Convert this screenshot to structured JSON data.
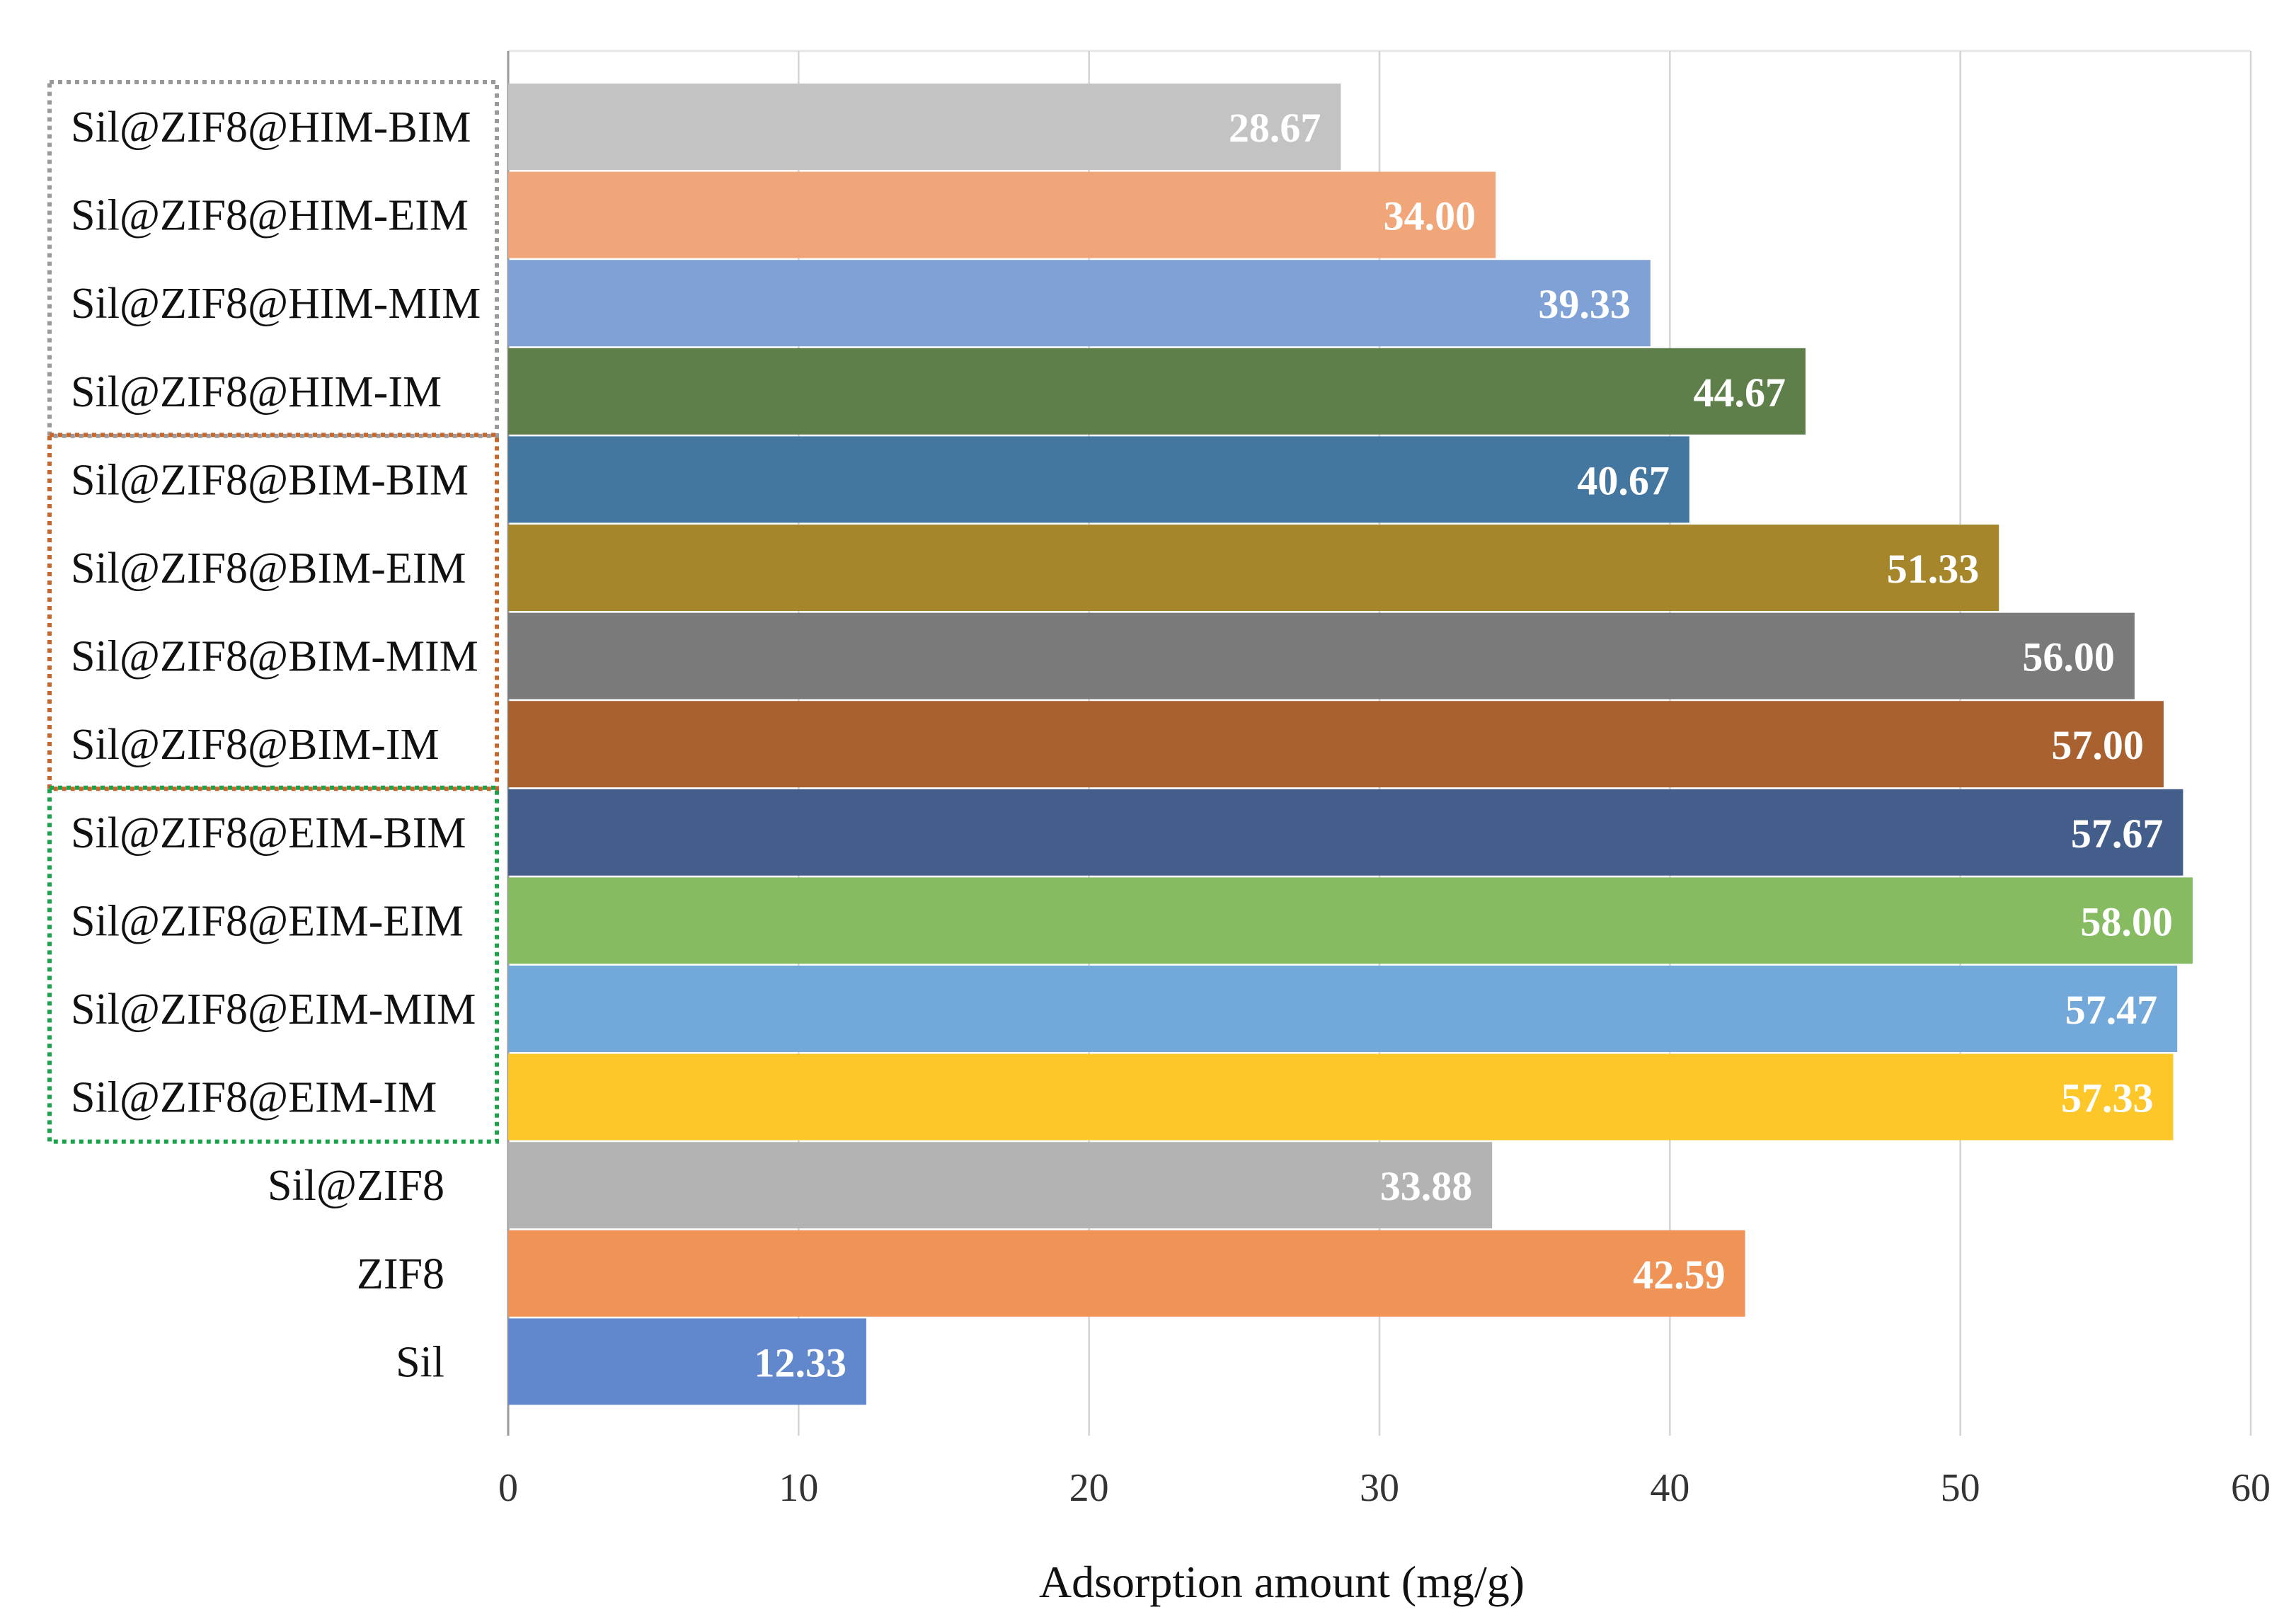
{
  "chart_data": {
    "type": "bar",
    "orientation": "horizontal",
    "title": "",
    "xlabel": "Adsorption amount (mg/g)",
    "ylabel": "",
    "xlim": [
      0,
      60
    ],
    "xticks": [
      0,
      10,
      20,
      30,
      40,
      50,
      60
    ],
    "grid": true,
    "categories": [
      "Sil@ZIF8@HIM-BIM",
      "Sil@ZIF8@HIM-EIM",
      "Sil@ZIF8@HIM-MIM",
      "Sil@ZIF8@HIM-IM",
      "Sil@ZIF8@BIM-BIM",
      "Sil@ZIF8@BIM-EIM",
      "Sil@ZIF8@BIM-MIM",
      "Sil@ZIF8@BIM-IM",
      "Sil@ZIF8@EIM-BIM",
      "Sil@ZIF8@EIM-EIM",
      "Sil@ZIF8@EIM-MIM",
      "Sil@ZIF8@EIM-IM",
      "Sil@ZIF8",
      "ZIF8",
      "Sil"
    ],
    "values": [
      28.67,
      34.0,
      39.33,
      44.67,
      40.67,
      51.33,
      56.0,
      57.0,
      57.67,
      58.0,
      57.47,
      57.33,
      33.88,
      42.59,
      12.33
    ],
    "value_labels": [
      "28.67",
      "34.00",
      "39.33",
      "44.67",
      "40.67",
      "51.33",
      "56.00",
      "57.00",
      "57.67",
      "58.00",
      "57.47",
      "57.33",
      "33.88",
      "42.59",
      "12.33"
    ],
    "bar_colors": [
      "#c3c3c3",
      "#f1a679",
      "#7fa1d6",
      "#5e7f4a",
      "#44779f",
      "#a5862b",
      "#7a7a7a",
      "#a9612f",
      "#445e8b",
      "#86bb61",
      "#72a9da",
      "#fdc72a",
      "#b3b3b3",
      "#ef9356",
      "#6187cd"
    ],
    "groups": [
      {
        "name": "HIM",
        "first": 0,
        "last": 3,
        "color": "#9a9a9a"
      },
      {
        "name": "BIM",
        "first": 4,
        "last": 7,
        "color": "#c8652a"
      },
      {
        "name": "EIM",
        "first": 8,
        "last": 11,
        "color": "#1aa34a"
      }
    ]
  }
}
